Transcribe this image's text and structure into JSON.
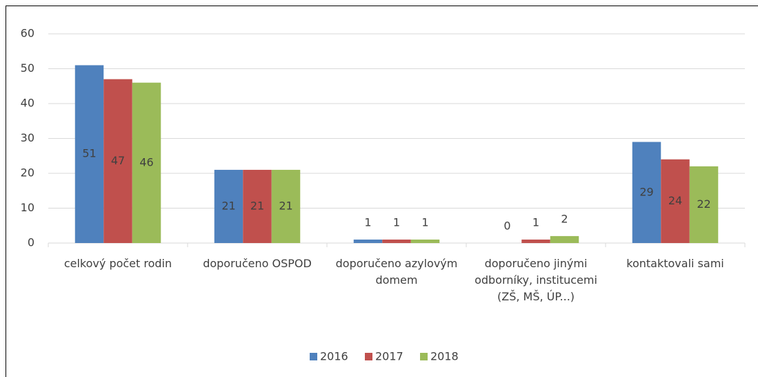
{
  "chart_data": {
    "type": "bar",
    "categories": [
      "celkový počet rodin",
      "doporučeno OSPOD",
      "doporučeno azylovým domem",
      "doporučeno jinými odborníky, institucemi (ZŠ, MŠ, ÚP...)",
      "kontaktovali sami"
    ],
    "series": [
      {
        "name": "2016",
        "color": "#4f81bd",
        "values": [
          51,
          21,
          1,
          0,
          29
        ]
      },
      {
        "name": "2017",
        "color": "#c0504d",
        "values": [
          47,
          21,
          1,
          1,
          24
        ]
      },
      {
        "name": "2018",
        "color": "#9bbb59",
        "values": [
          46,
          21,
          1,
          2,
          22
        ]
      }
    ],
    "ylim": [
      0,
      60
    ],
    "yticks": [
      0,
      10,
      20,
      30,
      40,
      50,
      60
    ],
    "grid": true,
    "legend": "bottom"
  }
}
